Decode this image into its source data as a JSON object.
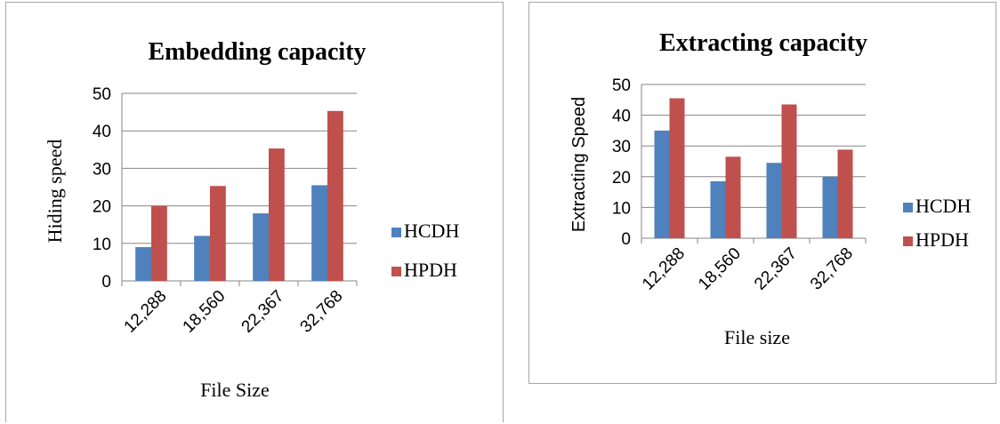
{
  "chart_data": [
    {
      "type": "bar",
      "title": "Embedding capacity",
      "xlabel": "File Size",
      "ylabel": "Hiding speed",
      "categories": [
        "12,288",
        "18,560",
        "22,367",
        "32,768"
      ],
      "ylim": [
        0,
        50
      ],
      "yticks": [
        0,
        10,
        20,
        30,
        40,
        50
      ],
      "grid": true,
      "legend_position": "right",
      "series": [
        {
          "name": "HCDH",
          "color": "#4f81bd",
          "values": [
            9,
            12,
            18,
            25.5
          ]
        },
        {
          "name": "HPDH",
          "color": "#c0504d",
          "values": [
            20,
            25.3,
            35.3,
            45.3
          ]
        }
      ]
    },
    {
      "type": "bar",
      "title": "Extracting capacity",
      "xlabel": "File size",
      "ylabel": "Extracting Speed",
      "categories": [
        "12,288",
        "18,560",
        "22,367",
        "32,768"
      ],
      "ylim": [
        0,
        50
      ],
      "yticks": [
        0,
        10,
        20,
        30,
        40,
        50
      ],
      "grid": true,
      "legend_position": "right",
      "series": [
        {
          "name": "HCDH",
          "color": "#4f81bd",
          "values": [
            35,
            18.5,
            24.5,
            20
          ]
        },
        {
          "name": "HPDH",
          "color": "#c0504d",
          "values": [
            45.5,
            26.5,
            43.5,
            28.8
          ]
        }
      ]
    }
  ]
}
